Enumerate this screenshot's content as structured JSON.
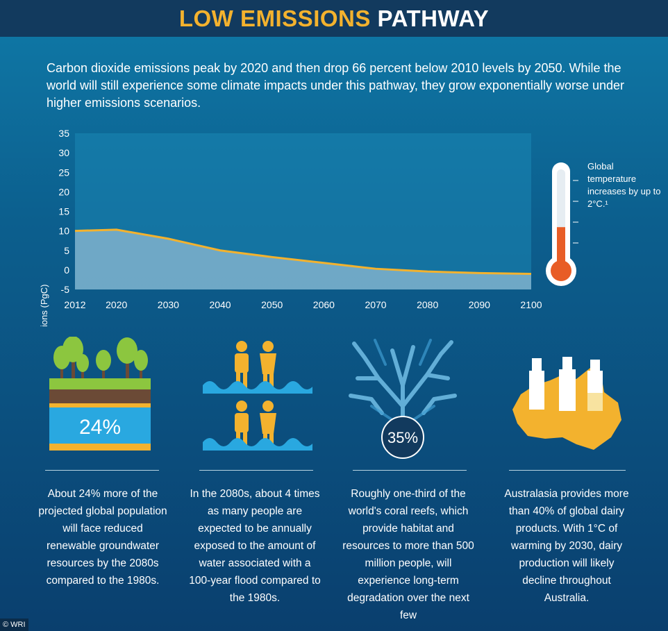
{
  "header": {
    "title_highlight": "LOW EMISSIONS",
    "title_rest": "PATHWAY"
  },
  "intro": "Carbon dioxide emissions peak by 2020 and then drop 66 percent below 2010 levels by 2050. While the world will still experience some climate impacts under this pathway, they grow exponentially worse under higher emissions scenarios.",
  "chart_data": {
    "type": "area",
    "title": "",
    "xlabel": "",
    "ylabel": "Annual Emissions (PgC)",
    "x": [
      2012,
      2020,
      2030,
      2040,
      2050,
      2060,
      2070,
      2080,
      2090,
      2100
    ],
    "x_tick_labels": [
      "2012",
      "2020",
      "2030",
      "2040",
      "2050",
      "2060",
      "2070",
      "2080",
      "2090",
      "2100"
    ],
    "y_ticks": [
      35,
      30,
      25,
      20,
      15,
      10,
      5,
      0,
      -5
    ],
    "ylim": [
      -5,
      35
    ],
    "series": [
      {
        "values": [
          10,
          10.3,
          8,
          5,
          3.3,
          1.8,
          0.3,
          -0.4,
          -0.8,
          -1
        ]
      }
    ],
    "grid": false,
    "colors": {
      "area": "#7fb2cc",
      "line": "#f3b22e"
    }
  },
  "thermometer": {
    "caption": "Global temperature increases by up to 2°C.¹",
    "fill_fraction": 0.43,
    "fill_color": "#e85d26"
  },
  "columns": [
    {
      "id": "groundwater",
      "badge": "24%",
      "text": "About 24% more of the projected global population will face reduced renewable groundwater resources by the 2080s compared to the 1980s."
    },
    {
      "id": "flood",
      "text": "In the 2080s, about 4 times as many people are expected to be annually exposed to the amount of water associated with a 100-year flood compared to the 1980s."
    },
    {
      "id": "coral",
      "badge": "35%",
      "text": "Roughly one-third of the world's coral reefs, which provide habitat and resources to more than 500 million people, will experience long-term degradation over the next few"
    },
    {
      "id": "dairy",
      "text": "Australasia provides more than 40% of global dairy products. With 1°C of warming by 2030, dairy production will likely decline throughout Australia."
    }
  ],
  "credit": "© WRI",
  "colors": {
    "accent": "#f3b22e",
    "header_bg": "#123a5e",
    "water": "#29a8e0",
    "grass": "#8cc63f",
    "soil": "#6b4a36"
  }
}
